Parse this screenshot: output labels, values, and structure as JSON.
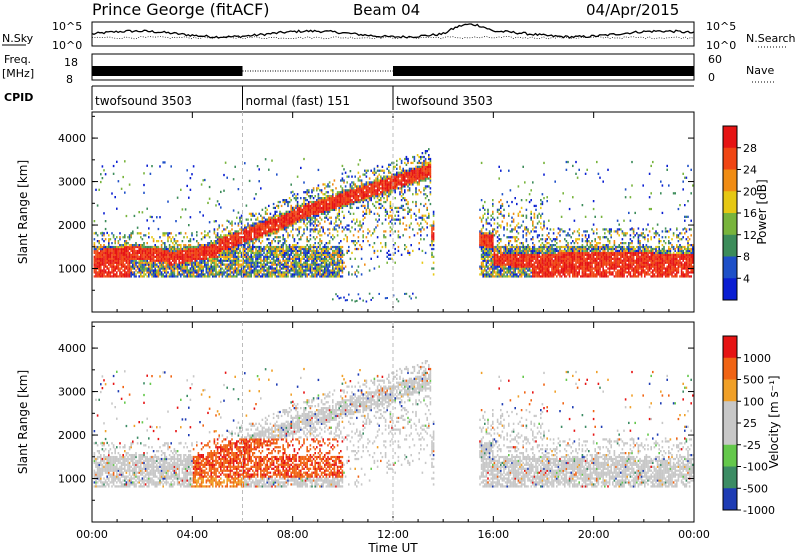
{
  "header": {
    "station": "Prince George (fitACF)",
    "beam": "Beam 04",
    "date": "04/Apr/2015"
  },
  "strips": {
    "nsky_label": "N.Sky",
    "nsky_ticks": [
      "10^5",
      "10^0"
    ],
    "nsearch_label": "N.Search",
    "nsearch_ticks": [
      "10^5",
      "10^0"
    ],
    "freq_label_1": "Freq.",
    "freq_label_2": "[MHz]",
    "freq_ticks": [
      "18",
      "8"
    ],
    "nave_label": "Nave",
    "nave_ticks": [
      "60",
      "0"
    ],
    "cpid_label": "CPID"
  },
  "cpid_segments": [
    {
      "label": "twofsound 3503",
      "start": 0,
      "end": 6
    },
    {
      "label": "normal (fast) 151",
      "start": 6,
      "end": 12
    },
    {
      "label": "twofsound 3503",
      "start": 12,
      "end": 24
    }
  ],
  "chart_data": [
    {
      "type": "heatmap",
      "name": "power",
      "ylabel": "Slant Range [km]",
      "ylim": [
        0,
        4600
      ],
      "yticks": [
        "1000",
        "2000",
        "3000",
        "4000"
      ],
      "xlim": [
        0,
        24
      ],
      "colorbar_label": "Power [dB]",
      "colorbar_ticks": [
        "28",
        "24",
        "20",
        "16",
        "12",
        "8",
        "4"
      ],
      "colors": [
        "#0a1ed2",
        "#1e50c8",
        "#3c8c5a",
        "#78b43c",
        "#e6c814",
        "#f08c14",
        "#f04614",
        "#e61414"
      ]
    },
    {
      "type": "heatmap",
      "name": "velocity",
      "ylabel": "Slant Range [km]",
      "ylim": [
        0,
        4600
      ],
      "yticks": [
        "1000",
        "2000",
        "3000",
        "4000"
      ],
      "xlim": [
        0,
        24
      ],
      "xticks": [
        "00:00",
        "04:00",
        "08:00",
        "12:00",
        "16:00",
        "20:00",
        "00:00"
      ],
      "xlabel": "Time UT",
      "colorbar_label": "Velocity [m s⁻¹]",
      "colorbar_ticks": [
        "1000",
        "500",
        "100",
        "25",
        "-25",
        "-100",
        "-500",
        "-1000"
      ],
      "colors": [
        "#1e3cb4",
        "#3c8c64",
        "#64c84b",
        "#c8c8c8",
        "#c8c8c8",
        "#f0a028",
        "#f06414",
        "#e61414"
      ]
    }
  ]
}
